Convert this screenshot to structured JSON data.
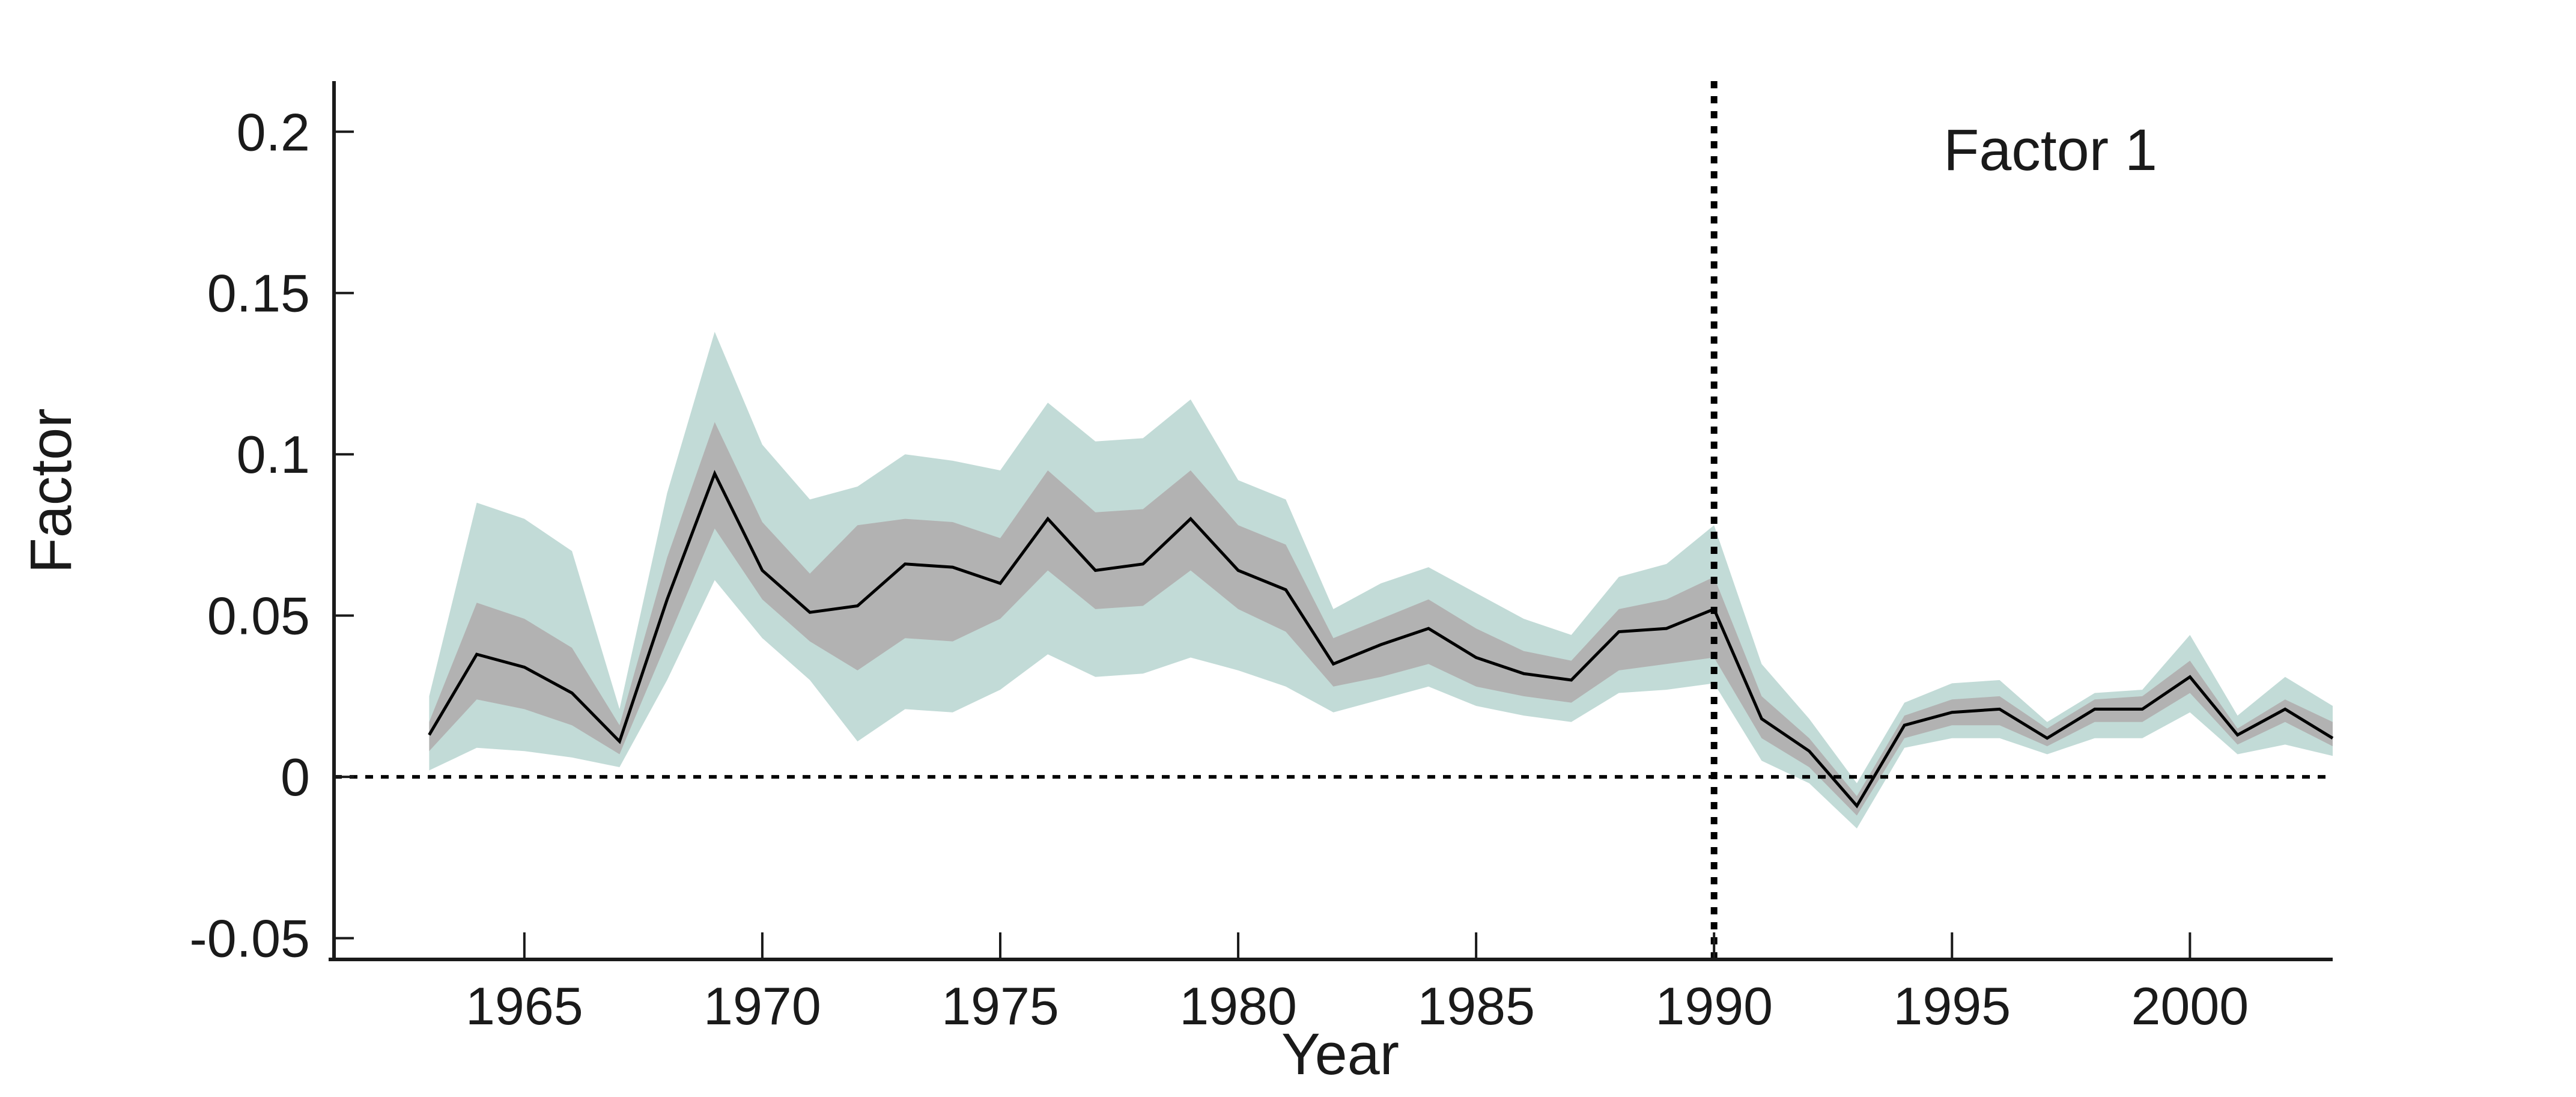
{
  "chart_data": {
    "type": "line",
    "title": "Factor 1",
    "xlabel": "Year",
    "ylabel": "Factor",
    "xlim": [
      1961,
      2003
    ],
    "ylim": [
      -0.0566,
      0.2157
    ],
    "x_ticks": [
      1965,
      1970,
      1975,
      1980,
      1985,
      1990,
      1995,
      2000
    ],
    "x_tick_labels": [
      "1965",
      "1970",
      "1975",
      "1980",
      "1985",
      "1990",
      "1995",
      "2000"
    ],
    "y_ticks": [
      -0.05,
      0,
      0.05,
      0.1,
      0.15,
      0.2
    ],
    "y_tick_labels": [
      "-0.05",
      "0",
      "0.05",
      "0.1",
      "0.15",
      "0.2"
    ],
    "grid": "off",
    "legend": "none",
    "reference_lines": {
      "horizontal_dotted_y": 0,
      "vertical_dotted_x": 1990
    },
    "colors": {
      "outer_band": "#c2dbd7",
      "inner_band": "#b2b2b2",
      "mean_line": "#000000",
      "axis": "#1a1a1a",
      "background": "#ffffff"
    },
    "years": [
      1963,
      1964,
      1965,
      1966,
      1967,
      1968,
      1969,
      1970,
      1971,
      1972,
      1973,
      1974,
      1975,
      1976,
      1977,
      1978,
      1979,
      1980,
      1981,
      1982,
      1983,
      1984,
      1985,
      1986,
      1987,
      1988,
      1989,
      1990,
      1991,
      1992,
      1993,
      1994,
      1995,
      1996,
      1997,
      1998,
      1999,
      2000,
      2001,
      2002,
      2003
    ],
    "series": [
      {
        "name": "mean",
        "values": [
          0.013,
          0.038,
          0.034,
          0.026,
          0.011,
          0.055,
          0.094,
          0.064,
          0.051,
          0.053,
          0.066,
          0.065,
          0.06,
          0.08,
          0.064,
          0.066,
          0.08,
          0.064,
          0.058,
          0.035,
          0.041,
          0.046,
          0.037,
          0.032,
          0.03,
          0.045,
          0.046,
          0.052,
          0.018,
          0.008,
          -0.009,
          0.016,
          0.02,
          0.021,
          0.012,
          0.021,
          0.021,
          0.031,
          0.013,
          0.021,
          0.012
        ]
      },
      {
        "name": "inner_band_low",
        "values": [
          0.008,
          0.024,
          0.021,
          0.016,
          0.007,
          0.042,
          0.077,
          0.055,
          0.042,
          0.033,
          0.043,
          0.042,
          0.049,
          0.064,
          0.052,
          0.053,
          0.064,
          0.052,
          0.045,
          0.028,
          0.031,
          0.035,
          0.028,
          0.025,
          0.023,
          0.033,
          0.035,
          0.037,
          0.012,
          0.003,
          -0.012,
          0.012,
          0.016,
          0.016,
          0.0095,
          0.017,
          0.017,
          0.026,
          0.01,
          0.017,
          0.0095
        ]
      },
      {
        "name": "inner_band_high",
        "values": [
          0.017,
          0.054,
          0.049,
          0.04,
          0.016,
          0.068,
          0.11,
          0.079,
          0.063,
          0.078,
          0.08,
          0.079,
          0.074,
          0.095,
          0.082,
          0.083,
          0.095,
          0.078,
          0.072,
          0.043,
          0.049,
          0.055,
          0.046,
          0.039,
          0.036,
          0.052,
          0.055,
          0.062,
          0.025,
          0.012,
          -0.006,
          0.019,
          0.024,
          0.025,
          0.015,
          0.024,
          0.025,
          0.036,
          0.015,
          0.024,
          0.017
        ]
      },
      {
        "name": "outer_band_low",
        "values": [
          0.002,
          0.009,
          0.008,
          0.006,
          0.003,
          0.03,
          0.061,
          0.043,
          0.03,
          0.011,
          0.021,
          0.02,
          0.027,
          0.038,
          0.031,
          0.032,
          0.037,
          0.033,
          0.028,
          0.02,
          0.024,
          0.028,
          0.022,
          0.019,
          0.017,
          0.026,
          0.027,
          0.029,
          0.005,
          -0.002,
          -0.016,
          0.009,
          0.012,
          0.012,
          0.007,
          0.012,
          0.012,
          0.02,
          0.007,
          0.01,
          0.0065
        ]
      },
      {
        "name": "outer_band_high",
        "values": [
          0.025,
          0.085,
          0.08,
          0.07,
          0.021,
          0.088,
          0.138,
          0.103,
          0.086,
          0.09,
          0.1,
          0.098,
          0.095,
          0.116,
          0.104,
          0.105,
          0.117,
          0.092,
          0.086,
          0.052,
          0.06,
          0.065,
          0.057,
          0.049,
          0.044,
          0.062,
          0.066,
          0.078,
          0.035,
          0.018,
          -0.002,
          0.023,
          0.029,
          0.03,
          0.017,
          0.026,
          0.027,
          0.044,
          0.019,
          0.031,
          0.022
        ]
      }
    ]
  }
}
